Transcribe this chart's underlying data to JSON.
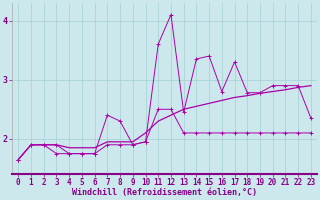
{
  "xlabel": "Windchill (Refroidissement éolien,°C)",
  "ylabel": "",
  "bg_color": "#cce8ec",
  "grid_color": "#aad4d8",
  "line_color": "#aa00aa",
  "x": [
    0,
    1,
    2,
    3,
    4,
    5,
    6,
    7,
    8,
    9,
    10,
    11,
    12,
    13,
    14,
    15,
    16,
    17,
    18,
    19,
    20,
    21,
    22,
    23
  ],
  "line1": [
    1.65,
    1.9,
    1.9,
    1.75,
    1.75,
    1.75,
    1.75,
    2.4,
    2.3,
    1.9,
    1.95,
    3.6,
    4.1,
    2.45,
    3.35,
    3.4,
    2.8,
    3.3,
    2.78,
    2.78,
    2.9,
    2.9,
    2.9,
    2.35
  ],
  "line2": [
    1.65,
    1.9,
    1.9,
    1.9,
    1.75,
    1.75,
    1.75,
    1.9,
    1.9,
    1.9,
    1.95,
    2.5,
    2.5,
    2.1,
    2.1,
    2.1,
    2.1,
    2.1,
    2.1,
    2.1,
    2.1,
    2.1,
    2.1,
    2.1
  ],
  "line3": [
    1.65,
    1.9,
    1.9,
    1.9,
    1.85,
    1.85,
    1.85,
    1.95,
    1.95,
    1.95,
    2.1,
    2.3,
    2.4,
    2.5,
    2.55,
    2.6,
    2.65,
    2.7,
    2.73,
    2.77,
    2.8,
    2.83,
    2.87,
    2.9
  ],
  "ylim": [
    1.4,
    4.3
  ],
  "xlim": [
    -0.5,
    23.5
  ],
  "yticks": [
    2,
    3,
    4
  ],
  "xticks": [
    0,
    1,
    2,
    3,
    4,
    5,
    6,
    7,
    8,
    9,
    10,
    11,
    12,
    13,
    14,
    15,
    16,
    17,
    18,
    19,
    20,
    21,
    22,
    23
  ],
  "xlabel_fontsize": 6.0,
  "tick_fontsize": 5.5
}
